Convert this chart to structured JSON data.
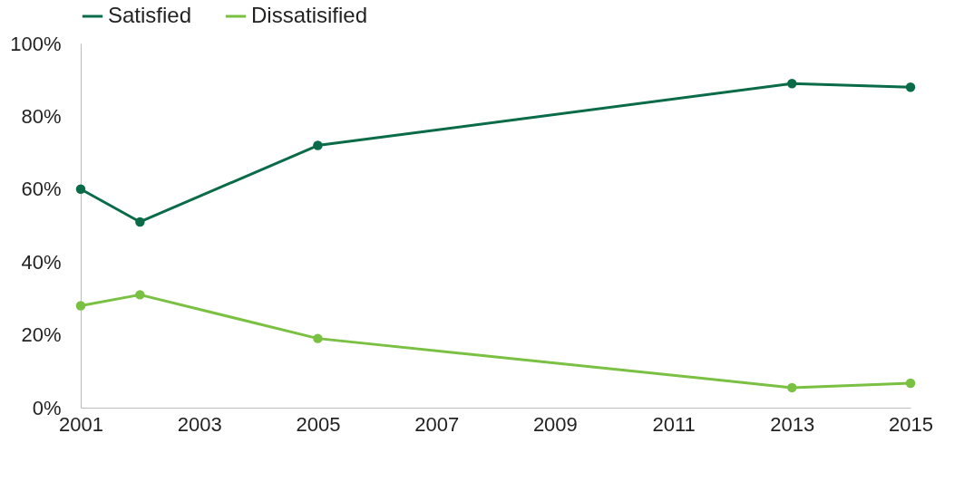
{
  "chart_data": {
    "type": "line",
    "x": [
      2001,
      2002,
      2005,
      2013,
      2015
    ],
    "series": [
      {
        "name": "Satisfied",
        "color": "#0a6b48",
        "values": [
          60,
          51,
          72,
          89,
          88
        ]
      },
      {
        "name": "Dissatisified",
        "color": "#7ac143",
        "values": [
          28,
          31,
          19,
          5.5,
          6.7
        ]
      }
    ],
    "xlim": [
      2001,
      2015
    ],
    "xticks": [
      2001,
      2003,
      2005,
      2007,
      2009,
      2011,
      2013,
      2015
    ],
    "ylim": [
      0,
      100
    ],
    "yticks": [
      {
        "value": 0,
        "label": "0%"
      },
      {
        "value": 20,
        "label": "20%"
      },
      {
        "value": 40,
        "label": "40%"
      },
      {
        "value": 60,
        "label": "60%"
      },
      {
        "value": 80,
        "label": "80%"
      },
      {
        "value": 100,
        "label": "100%"
      }
    ],
    "grid": false,
    "legend": "top",
    "marker": "circle",
    "line_style": "solid"
  }
}
